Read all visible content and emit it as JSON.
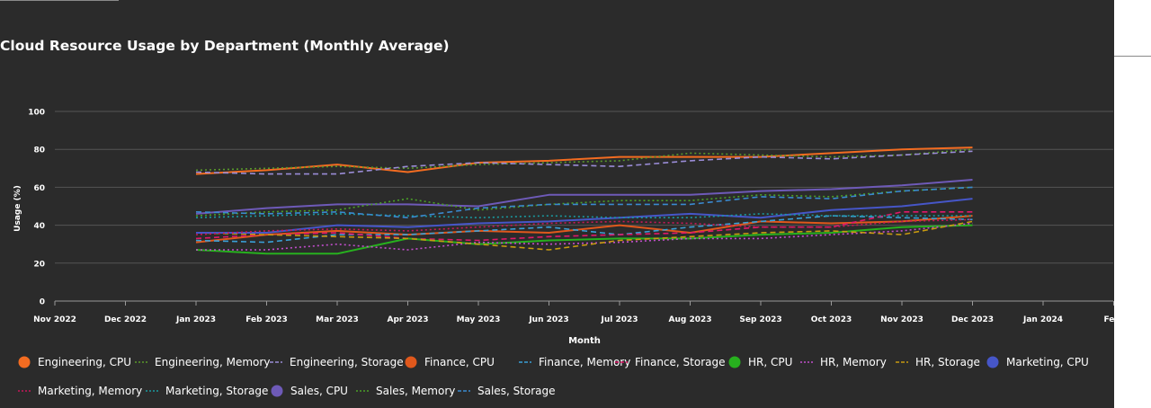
{
  "chart_data": {
    "type": "line",
    "title": "Cloud Resource Usage by Department (Monthly Average)",
    "xlabel": "Month",
    "ylabel": "Usage (%)",
    "ylim": [
      0,
      100
    ],
    "yticks": [
      0,
      20,
      40,
      60,
      80,
      100
    ],
    "xticks": [
      "Nov 2022",
      "Dec 2022",
      "Jan 2023",
      "Feb 2023",
      "Mar 2023",
      "Apr 2023",
      "May 2023",
      "Jun 2023",
      "Jul 2023",
      "Aug 2023",
      "Sep 2023",
      "Oct 2023",
      "Nov 2023",
      "Dec 2023",
      "Jan 2024",
      "Feb"
    ],
    "grid": true,
    "legend_position": "bottom",
    "x": [
      "Jan 2023",
      "Feb 2023",
      "Mar 2023",
      "Apr 2023",
      "May 2023",
      "Jun 2023",
      "Jul 2023",
      "Aug 2023",
      "Sep 2023",
      "Oct 2023",
      "Nov 2023",
      "Dec 2023"
    ],
    "series": [
      {
        "name": "Engineering, CPU",
        "color": "#f36c21",
        "style": "solid",
        "values": [
          67,
          69,
          72,
          68,
          73,
          74,
          76,
          76,
          76,
          78,
          80,
          81
        ]
      },
      {
        "name": "Engineering, Memory",
        "color": "#5a9a2a",
        "style": "dotted",
        "values": [
          69,
          70,
          71,
          70,
          72,
          73,
          74,
          78,
          77,
          76,
          77,
          80
        ]
      },
      {
        "name": "Engineering, Storage",
        "color": "#9a8cd6",
        "style": "dashed",
        "values": [
          68,
          67,
          67,
          71,
          73,
          72,
          71,
          74,
          76,
          75,
          77,
          79
        ]
      },
      {
        "name": "Finance, CPU",
        "color": "#e0581c",
        "style": "solid",
        "values": [
          31,
          35,
          37,
          35,
          37,
          36,
          40,
          36,
          42,
          41,
          42,
          45
        ]
      },
      {
        "name": "Finance, Memory",
        "color": "#3aa0d8",
        "style": "dashed",
        "values": [
          32,
          31,
          35,
          35,
          37,
          39,
          35,
          39,
          42,
          45,
          44,
          43
        ]
      },
      {
        "name": "Finance, Storage",
        "color": "#e0186a",
        "style": "dashed",
        "values": [
          33,
          35,
          36,
          33,
          32,
          34,
          35,
          36,
          39,
          39,
          47,
          47
        ]
      },
      {
        "name": "HR, CPU",
        "color": "#27b01e",
        "style": "solid",
        "values": [
          27,
          25,
          25,
          33,
          30,
          32,
          33,
          33,
          35,
          36,
          39,
          40
        ]
      },
      {
        "name": "HR, Memory",
        "color": "#c24ecc",
        "style": "dotted",
        "values": [
          27,
          27,
          30,
          27,
          31,
          30,
          31,
          33,
          33,
          35,
          37,
          41
        ]
      },
      {
        "name": "HR, Storage",
        "color": "#c89a10",
        "style": "dashed",
        "values": [
          36,
          35,
          34,
          33,
          30,
          27,
          32,
          34,
          36,
          37,
          35,
          42
        ]
      },
      {
        "name": "Marketing, CPU",
        "color": "#4656c8",
        "style": "solid",
        "values": [
          36,
          36,
          40,
          39,
          41,
          42,
          44,
          46,
          44,
          48,
          50,
          54
        ]
      },
      {
        "name": "Marketing, Memory",
        "color": "#c8185a",
        "style": "dotted",
        "values": [
          35,
          37,
          38,
          37,
          39,
          41,
          42,
          41,
          39,
          39,
          42,
          43
        ]
      },
      {
        "name": "Marketing, Storage",
        "color": "#1a9aa0",
        "style": "dotted",
        "values": [
          44,
          45,
          46,
          45,
          44,
          45,
          44,
          44,
          46,
          45,
          45,
          45
        ]
      },
      {
        "name": "Sales, CPU",
        "color": "#6e5ab8",
        "style": "solid",
        "values": [
          46,
          49,
          51,
          51,
          50,
          56,
          56,
          56,
          58,
          59,
          61,
          64
        ]
      },
      {
        "name": "Sales, Memory",
        "color": "#4aa028",
        "style": "dotted",
        "values": [
          45,
          47,
          48,
          54,
          48,
          51,
          53,
          53,
          56,
          55,
          58,
          60
        ]
      },
      {
        "name": "Sales, Storage",
        "color": "#3a8ad0",
        "style": "dashed",
        "values": [
          47,
          46,
          47,
          44,
          49,
          51,
          51,
          51,
          55,
          54,
          58,
          60
        ]
      }
    ]
  }
}
